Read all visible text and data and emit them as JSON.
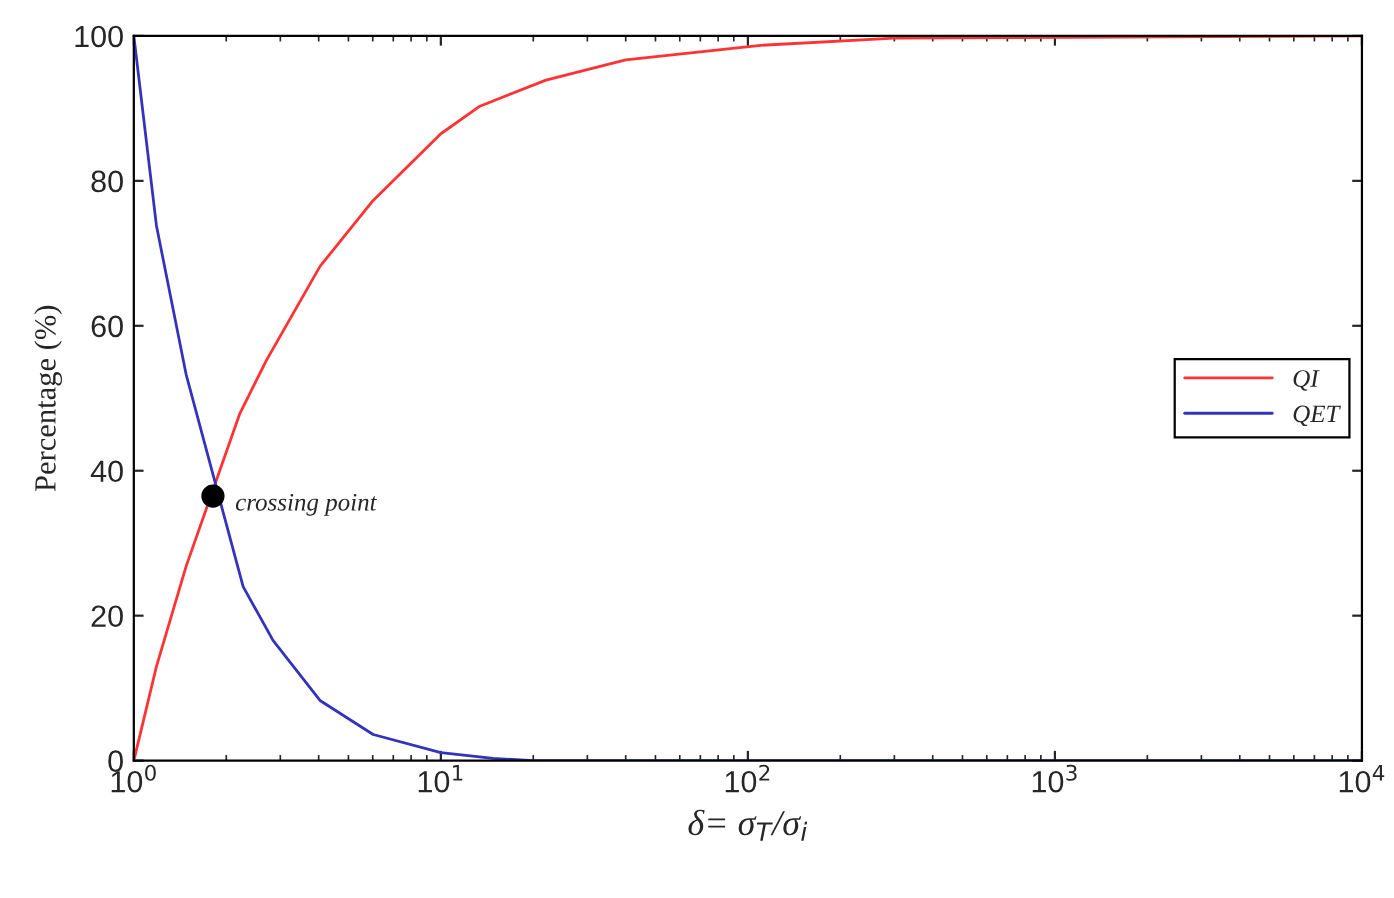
{
  "chart_data": {
    "type": "line",
    "xlabel": "δ= σ$_{T}$/σ$_{i}$",
    "ylabel": "Percentage (%)",
    "log": "x",
    "xlim": [
      1,
      10000
    ],
    "ylim": [
      0,
      100
    ],
    "xticks": [
      {
        "value": 1,
        "label": "10$^{0}$"
      },
      {
        "value": 10,
        "label": "10$^{1}$"
      },
      {
        "value": 100,
        "label": "10$^{2}$"
      },
      {
        "value": 1000,
        "label": "10$^{3}$"
      },
      {
        "value": 10000,
        "label": "10$^{4}$"
      }
    ],
    "yticks": [
      0,
      20,
      40,
      60,
      80,
      100
    ],
    "grid": false,
    "legend": "right",
    "marker": "none",
    "line_style": "solid",
    "series": [
      {
        "name": "QI",
        "color": "#ff3333",
        "x": [
          1,
          1.185,
          1.48,
          2.21,
          2.7,
          4.04,
          6.02,
          10,
          13.4,
          22,
          40,
          110,
          300,
          10000
        ],
        "values": [
          0,
          13,
          26.8,
          47.8,
          55.2,
          68.2,
          77.3,
          86.5,
          90.3,
          93.9,
          96.7,
          98.7,
          99.7,
          100
        ]
      },
      {
        "name": "QET",
        "color": "#3333bb",
        "x": [
          1,
          1.185,
          1.48,
          2.27,
          2.84,
          4.04,
          6.02,
          10,
          14.8,
          20,
          10000
        ],
        "values": [
          100,
          73.8,
          53.3,
          24,
          16.6,
          8.3,
          3.6,
          1.1,
          0.3,
          0,
          0
        ]
      },
      {
        "type": "scatter",
        "color": "#000000",
        "marker": "circle",
        "x": [
          1.81
        ],
        "values": [
          36.5
        ]
      }
    ],
    "annotations": [
      {
        "text": "crossing point",
        "x": 1.81,
        "y": 36.5
      }
    ]
  }
}
